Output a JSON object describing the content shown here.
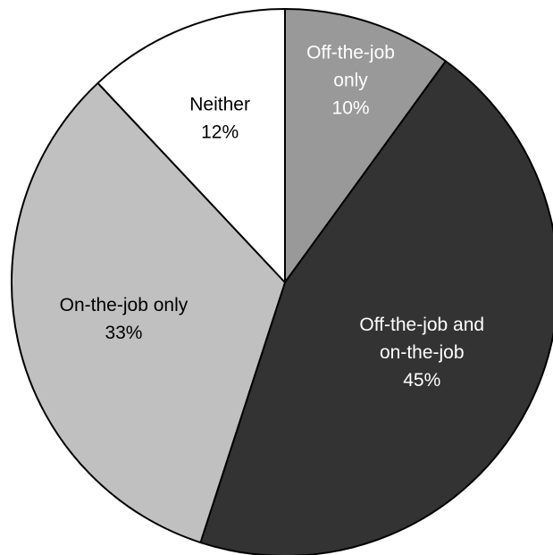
{
  "chart_data": {
    "type": "pie",
    "title": "",
    "start_angle_deg": 0,
    "direction": "clockwise",
    "slices": [
      {
        "name": "Off-the-job only",
        "label_lines": [
          "Off-the-job",
          "only"
        ],
        "value": 10,
        "value_label": "10%",
        "color": "#999999",
        "text_color": "#ffffff"
      },
      {
        "name": "Off-the-job and on-the-job",
        "label_lines": [
          "Off-the-job and",
          "on-the-job"
        ],
        "value": 45,
        "value_label": "45%",
        "color": "#333333",
        "text_color": "#ffffff"
      },
      {
        "name": "On-the-job only",
        "label_lines": [
          "On-the-job only"
        ],
        "value": 33,
        "value_label": "33%",
        "color": "#c0c0c0",
        "text_color": "#000000"
      },
      {
        "name": "Neither",
        "label_lines": [
          "Neither"
        ],
        "value": 12,
        "value_label": "12%",
        "color": "#ffffff",
        "text_color": "#000000"
      }
    ]
  }
}
